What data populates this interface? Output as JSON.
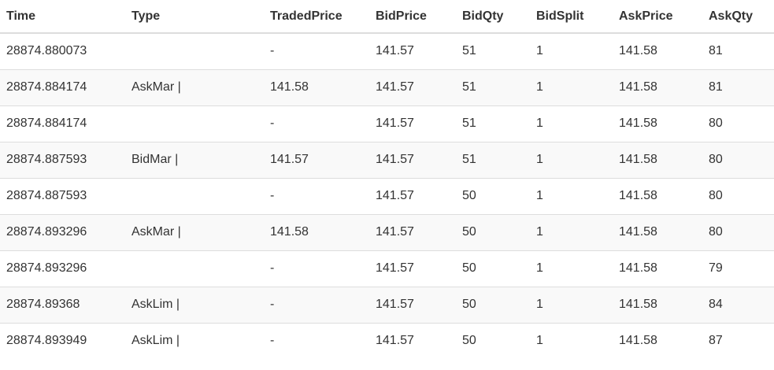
{
  "table": {
    "columns": [
      "Time",
      "Type",
      "TradedPrice",
      "BidPrice",
      "BidQty",
      "BidSplit",
      "AskPrice",
      "AskQty"
    ],
    "rows": [
      [
        "28874.880073",
        "",
        "-",
        "141.57",
        "51",
        "1",
        "141.58",
        "81"
      ],
      [
        "28874.884174",
        "AskMar |",
        "141.58",
        "141.57",
        "51",
        "1",
        "141.58",
        "81"
      ],
      [
        "28874.884174",
        "",
        "-",
        "141.57",
        "51",
        "1",
        "141.58",
        "80"
      ],
      [
        "28874.887593",
        "BidMar |",
        "141.57",
        "141.57",
        "51",
        "1",
        "141.58",
        "80"
      ],
      [
        "28874.887593",
        "",
        "-",
        "141.57",
        "50",
        "1",
        "141.58",
        "80"
      ],
      [
        "28874.893296",
        "AskMar |",
        "141.58",
        "141.57",
        "50",
        "1",
        "141.58",
        "80"
      ],
      [
        "28874.893296",
        "",
        "-",
        "141.57",
        "50",
        "1",
        "141.58",
        "79"
      ],
      [
        "28874.89368",
        "AskLim |",
        "-",
        "141.57",
        "50",
        "1",
        "141.58",
        "84"
      ],
      [
        "28874.893949",
        "AskLim |",
        "-",
        "141.57",
        "50",
        "1",
        "141.58",
        "87"
      ]
    ]
  },
  "colors": {
    "text": "#333333",
    "row_stripe": "#f9f9f9",
    "border": "#dddddd"
  }
}
